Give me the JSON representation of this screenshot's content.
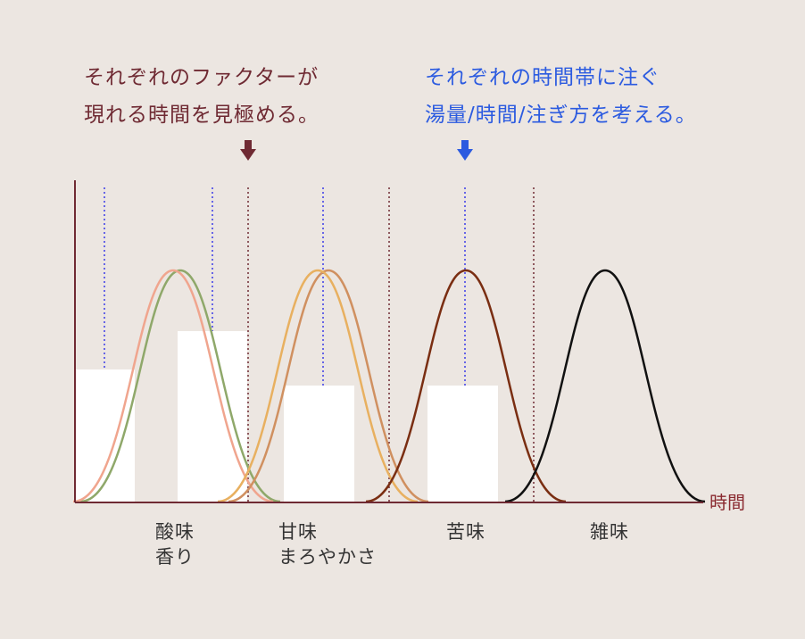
{
  "annotations": {
    "left": {
      "line1": "それぞれのファクターが",
      "line2": "現れる時間を見極める。",
      "color": "#6f2a33"
    },
    "right": {
      "line1": "それぞれの時間帯に注ぐ",
      "line2": "湯量/時間/注ぎ方を考える。",
      "color": "#2c5be0"
    }
  },
  "axis": {
    "x_label": "時間",
    "color": "#7a2a32"
  },
  "categories": [
    {
      "line1": "酸味",
      "line2": "香り"
    },
    {
      "line1": "甘味",
      "line2": "まろやかさ"
    },
    {
      "line1": "苦味",
      "line2": ""
    },
    {
      "line1": "雑味",
      "line2": ""
    }
  ],
  "curve_colors": {
    "acidity": "#f0a58e",
    "aroma": "#8fa86a",
    "sweetness": "#e8b060",
    "mildness": "#d09060",
    "bitterness": "#7a2e12",
    "off_flavor": "#111111"
  },
  "guide_colors": {
    "phase_boundary": "#6f2a33",
    "pour": "#3a3ae8"
  }
}
